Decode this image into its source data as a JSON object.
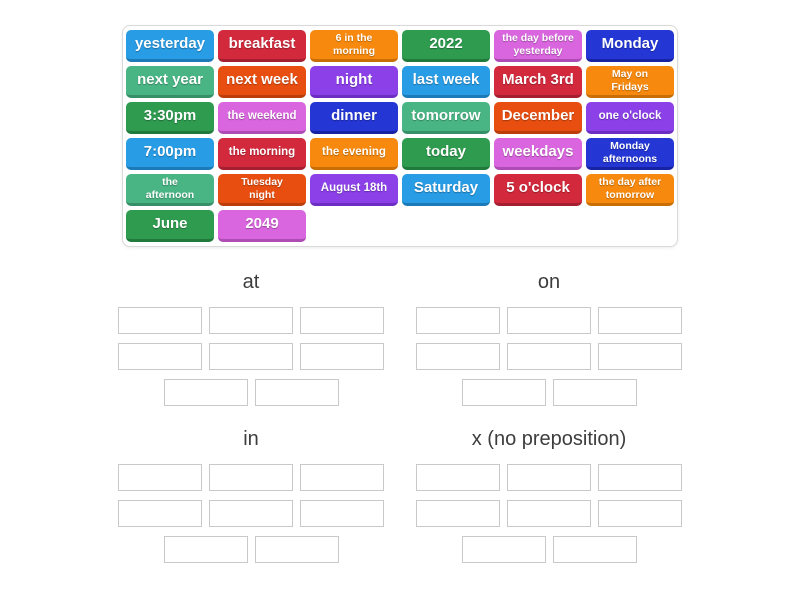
{
  "palette": {
    "skyblue": {
      "bg": "#289CE5",
      "edge": "#1B7BB8"
    },
    "crimson": {
      "bg": "#D2293C",
      "edge": "#A61F30"
    },
    "orange": {
      "bg": "#F78A0E",
      "edge": "#C96E04"
    },
    "green": {
      "bg": "#2E9B4F",
      "edge": "#1F7A3C"
    },
    "orchid": {
      "bg": "#D966DE",
      "edge": "#AE4BB5"
    },
    "navy": {
      "bg": "#2436D4",
      "edge": "#1823A3"
    },
    "seagreen": {
      "bg": "#49B584",
      "edge": "#368F66"
    },
    "orangered": {
      "bg": "#E84E10",
      "edge": "#BA3D0A"
    },
    "violet": {
      "bg": "#8B40E8",
      "edge": "#6C2EC2"
    }
  },
  "word_bank": {
    "tiles": [
      {
        "label": "yesterday",
        "color": "skyblue"
      },
      {
        "label": "breakfast",
        "color": "crimson"
      },
      {
        "label": "6 in the\nmorning",
        "color": "orange"
      },
      {
        "label": "2022",
        "color": "green"
      },
      {
        "label": "the day before\nyesterday",
        "color": "orchid"
      },
      {
        "label": "Monday",
        "color": "navy"
      },
      {
        "label": "next year",
        "color": "seagreen"
      },
      {
        "label": "next week",
        "color": "orangered"
      },
      {
        "label": "night",
        "color": "violet"
      },
      {
        "label": "last week",
        "color": "skyblue"
      },
      {
        "label": "March 3rd",
        "color": "crimson"
      },
      {
        "label": "May on\nFridays",
        "color": "orange"
      },
      {
        "label": "3:30pm",
        "color": "green"
      },
      {
        "label": "the weekend",
        "color": "orchid"
      },
      {
        "label": "dinner",
        "color": "navy"
      },
      {
        "label": "tomorrow",
        "color": "seagreen"
      },
      {
        "label": "December",
        "color": "orangered"
      },
      {
        "label": "one o'clock",
        "color": "violet"
      },
      {
        "label": "7:00pm",
        "color": "skyblue"
      },
      {
        "label": "the morning",
        "color": "crimson"
      },
      {
        "label": "the evening",
        "color": "orange"
      },
      {
        "label": "today",
        "color": "green"
      },
      {
        "label": "weekdays",
        "color": "orchid"
      },
      {
        "label": "Monday\nafternoons",
        "color": "navy"
      },
      {
        "label": "the\nafternoon",
        "color": "seagreen"
      },
      {
        "label": "Tuesday\nnight",
        "color": "orangered"
      },
      {
        "label": "August 18th",
        "color": "violet"
      },
      {
        "label": "Saturday",
        "color": "skyblue"
      },
      {
        "label": "5 o'clock",
        "color": "crimson"
      },
      {
        "label": "the day after\ntomorrow",
        "color": "orange"
      },
      {
        "label": "June",
        "color": "green"
      },
      {
        "label": "2049",
        "color": "orchid"
      }
    ]
  },
  "groups": [
    {
      "label": "at",
      "slots_per_row": [
        3,
        3,
        2
      ]
    },
    {
      "label": "on",
      "slots_per_row": [
        3,
        3,
        2
      ]
    },
    {
      "label": "in",
      "slots_per_row": [
        3,
        3,
        2
      ]
    },
    {
      "label": "x (no preposition)",
      "slots_per_row": [
        3,
        3,
        2
      ]
    }
  ]
}
